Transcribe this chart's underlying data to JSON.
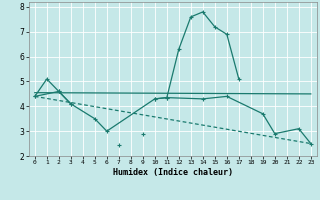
{
  "xlabel": "Humidex (Indice chaleur)",
  "bg_color": "#c5e8e8",
  "grid_color": "#ffffff",
  "line_color": "#1a7a6e",
  "xlim": [
    -0.5,
    23.5
  ],
  "ylim": [
    2,
    8.2
  ],
  "xticks": [
    0,
    1,
    2,
    3,
    4,
    5,
    6,
    7,
    8,
    9,
    10,
    11,
    12,
    13,
    14,
    15,
    16,
    17,
    18,
    19,
    20,
    21,
    22,
    23
  ],
  "yticks": [
    2,
    3,
    4,
    5,
    6,
    7,
    8
  ],
  "series1_segments": [
    {
      "x": [
        0,
        1,
        2,
        3
      ],
      "y": [
        4.4,
        5.1,
        4.6,
        4.1
      ]
    },
    {
      "x": [
        7
      ],
      "y": [
        2.45
      ]
    },
    {
      "x": [
        9
      ],
      "y": [
        2.9
      ]
    },
    {
      "x": [
        10,
        11,
        12,
        13,
        14,
        15,
        16,
        17
      ],
      "y": [
        4.3,
        4.35,
        6.3,
        7.6,
        7.8,
        7.2,
        6.9,
        5.1
      ]
    }
  ],
  "series2_x": [
    0,
    2,
    3,
    5,
    6,
    10,
    11,
    14,
    16,
    19,
    20,
    22,
    23
  ],
  "series2_y": [
    4.4,
    4.6,
    4.1,
    3.5,
    3.0,
    4.3,
    4.35,
    4.3,
    4.4,
    3.7,
    2.9,
    3.1,
    2.5
  ],
  "series3_x": [
    0,
    23
  ],
  "series3_y": [
    4.55,
    4.5
  ],
  "series4_x": [
    0,
    23
  ],
  "series4_y": [
    4.4,
    2.5
  ]
}
